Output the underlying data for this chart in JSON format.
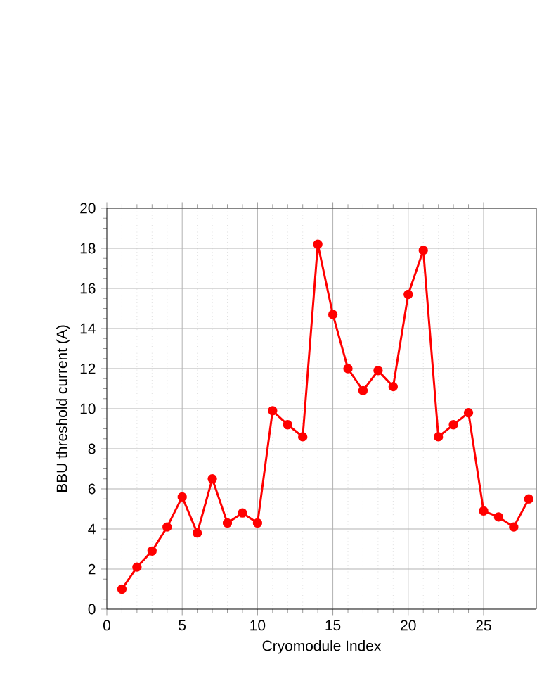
{
  "chart_data": {
    "type": "line",
    "xlabel": "Cryomodule Index",
    "ylabel": "BBU threshold current (A)",
    "x": [
      1,
      2,
      3,
      4,
      5,
      6,
      7,
      8,
      9,
      10,
      11,
      12,
      13,
      14,
      15,
      16,
      17,
      18,
      19,
      20,
      21,
      22,
      23,
      24,
      25,
      26,
      27,
      28
    ],
    "series": [
      {
        "color": "#ff0000",
        "values": [
          1.0,
          2.1,
          2.9,
          4.1,
          5.6,
          3.8,
          6.5,
          4.3,
          4.8,
          4.3,
          9.9,
          9.2,
          8.6,
          18.2,
          14.7,
          12.0,
          10.9,
          11.9,
          11.1,
          15.7,
          17.9,
          8.6,
          9.2,
          9.8,
          4.9,
          4.6,
          4.1,
          5.5
        ]
      }
    ],
    "xlim": [
      0,
      28.5
    ],
    "ylim": [
      0,
      20
    ],
    "xticks": [
      0,
      5,
      10,
      15,
      20,
      25
    ],
    "yticks": [
      0,
      2,
      4,
      6,
      8,
      10,
      12,
      14,
      16,
      18,
      20
    ],
    "grid": true,
    "marker": "circle",
    "line_style": "solid"
  }
}
